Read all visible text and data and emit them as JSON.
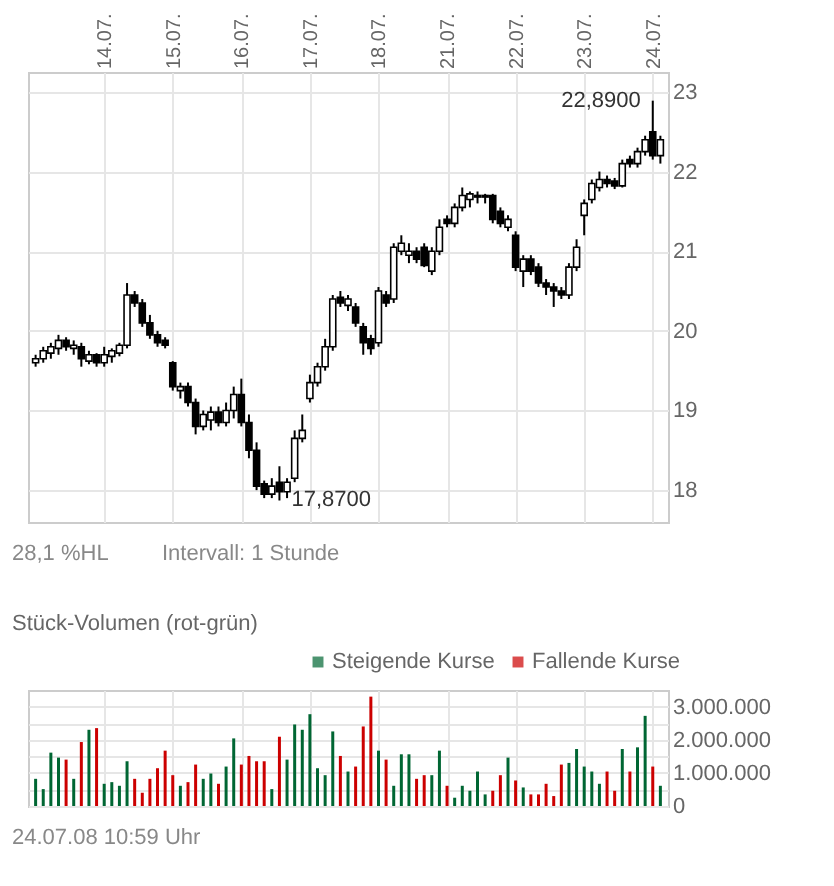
{
  "chart_data": [
    {
      "type": "candlestick",
      "categories": [
        null,
        null,
        null,
        null,
        null,
        null,
        null,
        null,
        null,
        "14.07.",
        null,
        null,
        null,
        null,
        null,
        null,
        null,
        null,
        "15.07.",
        null,
        null,
        null,
        null,
        null,
        null,
        null,
        null,
        "16.07.",
        null,
        null,
        null,
        null,
        null,
        null,
        null,
        null,
        "17.07.",
        null,
        null,
        null,
        null,
        null,
        null,
        null,
        null,
        "18.07.",
        null,
        null,
        null,
        null,
        null,
        null,
        null,
        null,
        "21.07.",
        null,
        null,
        null,
        null,
        null,
        null,
        null,
        null,
        "22.07.",
        null,
        null,
        null,
        null,
        null,
        null,
        null,
        null,
        "23.07.",
        null,
        null,
        null,
        null,
        null,
        null,
        null,
        null,
        "24.07.",
        null
      ],
      "ohlc": [
        [
          19.6,
          19.7,
          19.55,
          19.65
        ],
        [
          19.65,
          19.8,
          19.6,
          19.75
        ],
        [
          19.72,
          19.85,
          19.65,
          19.8
        ],
        [
          19.78,
          19.95,
          19.7,
          19.88
        ],
        [
          19.88,
          19.92,
          19.75,
          19.8
        ],
        [
          19.78,
          19.88,
          19.7,
          19.82
        ],
        [
          19.8,
          19.85,
          19.55,
          19.65
        ],
        [
          19.62,
          19.75,
          19.58,
          19.7
        ],
        [
          19.7,
          19.72,
          19.55,
          19.6
        ],
        [
          19.6,
          19.8,
          19.55,
          19.7
        ],
        [
          19.68,
          19.78,
          19.6,
          19.75
        ],
        [
          19.72,
          19.85,
          19.68,
          19.82
        ],
        [
          19.82,
          20.6,
          19.78,
          20.45
        ],
        [
          20.45,
          20.5,
          20.3,
          20.35
        ],
        [
          20.35,
          20.4,
          20.05,
          20.1
        ],
        [
          20.1,
          20.2,
          19.9,
          19.95
        ],
        [
          19.95,
          20.0,
          19.8,
          19.85
        ],
        [
          19.88,
          19.92,
          19.78,
          19.82
        ],
        [
          19.6,
          19.62,
          19.25,
          19.3
        ],
        [
          19.25,
          19.35,
          19.15,
          19.3
        ],
        [
          19.3,
          19.35,
          19.05,
          19.1
        ],
        [
          19.1,
          19.15,
          18.7,
          18.8
        ],
        [
          18.8,
          19.0,
          18.75,
          18.95
        ],
        [
          18.88,
          19.05,
          18.75,
          18.98
        ],
        [
          18.98,
          19.05,
          18.8,
          18.85
        ],
        [
          18.85,
          19.1,
          18.8,
          19.0
        ],
        [
          19.0,
          19.3,
          18.9,
          19.2
        ],
        [
          19.2,
          19.4,
          18.8,
          18.85
        ],
        [
          18.85,
          18.95,
          18.4,
          18.5
        ],
        [
          18.5,
          18.6,
          18.0,
          18.05
        ],
        [
          18.08,
          18.12,
          17.9,
          17.95
        ],
        [
          17.95,
          18.15,
          17.9,
          18.05
        ],
        [
          18.1,
          18.3,
          17.87,
          17.98
        ],
        [
          17.98,
          18.15,
          17.9,
          18.1
        ],
        [
          18.15,
          18.75,
          18.1,
          18.65
        ],
        [
          18.65,
          18.95,
          18.6,
          18.75
        ],
        [
          19.15,
          19.45,
          19.1,
          19.35
        ],
        [
          19.35,
          19.6,
          19.3,
          19.55
        ],
        [
          19.55,
          19.9,
          19.5,
          19.8
        ],
        [
          19.8,
          20.45,
          19.75,
          20.4
        ],
        [
          20.42,
          20.5,
          20.3,
          20.35
        ],
        [
          20.32,
          20.45,
          20.25,
          20.4
        ],
        [
          20.3,
          20.35,
          20.05,
          20.1
        ],
        [
          20.05,
          20.1,
          19.7,
          19.85
        ],
        [
          19.9,
          19.95,
          19.7,
          19.78
        ],
        [
          19.85,
          20.55,
          19.8,
          20.5
        ],
        [
          20.45,
          20.5,
          20.3,
          20.35
        ],
        [
          20.4,
          21.1,
          20.35,
          21.05
        ],
        [
          21.0,
          21.2,
          20.95,
          21.1
        ],
        [
          20.95,
          21.1,
          20.85,
          21.0
        ],
        [
          21.0,
          21.05,
          20.85,
          20.9
        ],
        [
          21.05,
          21.1,
          20.8,
          20.82
        ],
        [
          20.75,
          21.05,
          20.7,
          21.0
        ],
        [
          21.0,
          21.4,
          20.95,
          21.3
        ],
        [
          21.4,
          21.45,
          21.3,
          21.35
        ],
        [
          21.35,
          21.6,
          21.3,
          21.55
        ],
        [
          21.55,
          21.8,
          21.5,
          21.7
        ],
        [
          21.65,
          21.75,
          21.55,
          21.72
        ],
        [
          21.68,
          21.75,
          21.6,
          21.7
        ],
        [
          21.68,
          21.72,
          21.6,
          21.7
        ],
        [
          21.7,
          21.72,
          21.35,
          21.4
        ],
        [
          21.5,
          21.55,
          21.3,
          21.35
        ],
        [
          21.3,
          21.45,
          21.25,
          21.4
        ],
        [
          21.2,
          21.25,
          20.75,
          20.8
        ],
        [
          20.75,
          20.95,
          20.55,
          20.9
        ],
        [
          20.9,
          20.95,
          20.7,
          20.75
        ],
        [
          20.8,
          20.85,
          20.55,
          20.6
        ],
        [
          20.6,
          20.65,
          20.45,
          20.55
        ],
        [
          20.55,
          20.6,
          20.3,
          20.5
        ],
        [
          20.5,
          20.55,
          20.4,
          20.45
        ],
        [
          20.45,
          20.85,
          20.4,
          20.8
        ],
        [
          20.8,
          21.15,
          20.75,
          21.05
        ],
        [
          21.45,
          21.65,
          21.2,
          21.6
        ],
        [
          21.65,
          21.9,
          21.6,
          21.85
        ],
        [
          21.8,
          22.0,
          21.75,
          21.9
        ],
        [
          21.9,
          21.95,
          21.8,
          21.85
        ],
        [
          21.88,
          21.92,
          21.78,
          21.82
        ],
        [
          21.82,
          22.15,
          21.8,
          22.1
        ],
        [
          22.15,
          22.2,
          22.05,
          22.1
        ],
        [
          22.1,
          22.3,
          22.05,
          22.25
        ],
        [
          22.25,
          22.45,
          22.2,
          22.4
        ],
        [
          22.5,
          22.89,
          22.15,
          22.2
        ],
        [
          22.2,
          22.45,
          22.1,
          22.4
        ]
      ],
      "colors": [
        "#ffffff",
        "#ffffff",
        "#ffffff",
        "#ffffff",
        "#000000",
        "#ffffff",
        "#000000",
        "#ffffff",
        "#000000",
        "#ffffff",
        "#ffffff",
        "#ffffff",
        "#ffffff",
        "#000000",
        "#000000",
        "#000000",
        "#000000",
        "#000000",
        "#000000",
        "#ffffff",
        "#000000",
        "#000000",
        "#ffffff",
        "#ffffff",
        "#000000",
        "#ffffff",
        "#ffffff",
        "#000000",
        "#000000",
        "#000000",
        "#000000",
        "#ffffff",
        "#000000",
        "#ffffff",
        "#ffffff",
        "#ffffff",
        "#ffffff",
        "#ffffff",
        "#ffffff",
        "#ffffff",
        "#000000",
        "#ffffff",
        "#000000",
        "#000000",
        "#000000",
        "#ffffff",
        "#000000",
        "#ffffff",
        "#ffffff",
        "#ffffff",
        "#000000",
        "#000000",
        "#ffffff",
        "#ffffff",
        "#000000",
        "#ffffff",
        "#ffffff",
        "#ffffff",
        "#ffffff",
        "#ffffff",
        "#000000",
        "#000000",
        "#ffffff",
        "#000000",
        "#ffffff",
        "#000000",
        "#000000",
        "#000000",
        "#000000",
        "#000000",
        "#ffffff",
        "#ffffff",
        "#ffffff",
        "#ffffff",
        "#ffffff",
        "#000000",
        "#000000",
        "#ffffff",
        "#000000",
        "#ffffff",
        "#ffffff",
        "#000000",
        "#ffffff"
      ],
      "ylim": [
        17.6,
        23.25
      ],
      "yticks": [
        18,
        19,
        20,
        21,
        22,
        23
      ],
      "grid": true,
      "annotations": [
        "17,8700",
        "22,8900",
        "28,1 %HL",
        "Intervall: 1 Stunde"
      ]
    },
    {
      "type": "bar",
      "title": "Stück-Volumen (rot-grün)",
      "categories": [
        null,
        null,
        null,
        null,
        null,
        null,
        null,
        null,
        null,
        null,
        null,
        null,
        null,
        null,
        null,
        null,
        null,
        null,
        null,
        null,
        null,
        null,
        null,
        null,
        null,
        null,
        null,
        null,
        null,
        null,
        null,
        null,
        null,
        null,
        null,
        null,
        null,
        null,
        null,
        null,
        null,
        null,
        null,
        null,
        null,
        null,
        null,
        null,
        null,
        null,
        null,
        null,
        null,
        null,
        null,
        null,
        null,
        null,
        null,
        null,
        null,
        null,
        null,
        null,
        null,
        null,
        null,
        null,
        null,
        null,
        null,
        null,
        null,
        null,
        null,
        null,
        null,
        null,
        null,
        null,
        null,
        null,
        null
      ],
      "series": [
        {
          "name": "Steigende Kurse",
          "color": "#006633",
          "values": [
            820000,
            510000,
            1610000,
            1460000,
            null,
            820000,
            null,
            2300000,
            null,
            670000,
            720000,
            610000,
            1350000,
            null,
            null,
            null,
            null,
            null,
            null,
            610000,
            null,
            null,
            820000,
            980000,
            null,
            1190000,
            2040000,
            null,
            null,
            null,
            null,
            510000,
            null,
            1400000,
            2460000,
            2300000,
            2770000,
            1140000,
            930000,
            2250000,
            null,
            1040000,
            null,
            null,
            null,
            1670000,
            null,
            610000,
            1560000,
            1560000,
            null,
            null,
            930000,
            1670000,
            null,
            250000,
            610000,
            460000,
            1040000,
            350000,
            null,
            null,
            1460000,
            null,
            560000,
            null,
            null,
            null,
            null,
            null,
            1300000,
            1720000,
            1190000,
            1040000,
            670000,
            null,
            null,
            1720000,
            null,
            1770000,
            2720000,
            null,
            610000
          ]
        },
        {
          "name": "Fallende Kurse",
          "color": "#cc0000",
          "values": [
            null,
            null,
            null,
            null,
            1400000,
            null,
            1930000,
            null,
            2350000,
            null,
            null,
            null,
            null,
            820000,
            400000,
            820000,
            1140000,
            1670000,
            930000,
            null,
            720000,
            1250000,
            null,
            null,
            670000,
            null,
            null,
            1250000,
            1510000,
            1350000,
            1350000,
            null,
            2090000,
            null,
            null,
            null,
            null,
            null,
            null,
            null,
            1510000,
            null,
            1190000,
            2400000,
            3300000,
            null,
            1400000,
            null,
            null,
            null,
            820000,
            930000,
            null,
            null,
            610000,
            null,
            null,
            null,
            null,
            null,
            460000,
            930000,
            null,
            770000,
            null,
            350000,
            350000,
            670000,
            300000,
            1250000,
            null,
            null,
            null,
            null,
            null,
            1040000,
            460000,
            null,
            1040000,
            null,
            null,
            1190000,
            null
          ]
        }
      ],
      "ylim": [
        0,
        3500000
      ],
      "yticks": [
        0,
        {
          "value": 500000,
          "label": null
        },
        {
          "value": 1000000,
          "label": "1.000.000"
        },
        {
          "value": 1500000,
          "label": null
        },
        {
          "value": 2000000,
          "label": "2.000.000"
        },
        {
          "value": 2500000,
          "label": null
        },
        {
          "value": 3000000,
          "label": "3.000.000"
        }
      ],
      "grid": true,
      "legend": "top right",
      "tick_labels": "y",
      "annotations": [
        "24.07.08 10:59 Uhr"
      ]
    }
  ]
}
